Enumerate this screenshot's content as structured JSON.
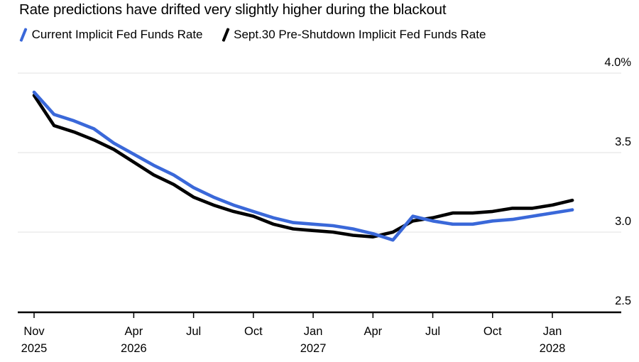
{
  "title": "Rate predictions have drifted very slightly higher during the blackout",
  "legend": {
    "items": [
      {
        "label": "Current Implicit Fed Funds Rate",
        "color": "#3A68D9"
      },
      {
        "label": "Sept.30 Pre-Shutdown Implicit Fed Funds Rate",
        "color": "#000000"
      }
    ]
  },
  "colors": {
    "background": "#ffffff",
    "text": "#000000",
    "gridline": "#e7e7e7",
    "axis": "#000000",
    "accent_blue": "#3A68D9",
    "line_black": "#000000"
  },
  "chart_data": {
    "type": "line",
    "title": "Rate predictions have drifted very slightly higher during the blackout",
    "xlabel": "",
    "ylabel": "",
    "ylim": [
      2.5,
      4.0
    ],
    "grid": "horizontal",
    "legend_position": "top-left",
    "y_ticks": [
      {
        "label": "4.0%",
        "value": 4.0,
        "gridline": true
      },
      {
        "label": "3.5",
        "value": 3.5,
        "gridline": true
      },
      {
        "label": "3.0",
        "value": 3.0,
        "gridline": true
      },
      {
        "label": "2.5",
        "value": 2.5,
        "gridline": false
      }
    ],
    "categories": [
      "Nov 2025",
      "Dec 2025",
      "Jan 2026",
      "Feb 2026",
      "Mar 2026",
      "Apr 2026",
      "May 2026",
      "Jun 2026",
      "Jul 2026",
      "Aug 2026",
      "Sep 2026",
      "Oct 2026",
      "Nov 2026",
      "Dec 2026",
      "Jan 2027",
      "Feb 2027",
      "Mar 2027",
      "Apr 2027",
      "May 2027",
      "Jun 2027",
      "Jul 2027",
      "Aug 2027",
      "Sep 2027",
      "Oct 2027",
      "Nov 2027",
      "Dec 2027",
      "Jan 2028",
      "Feb 2028"
    ],
    "x_ticks": [
      {
        "index": 0,
        "label": "Nov",
        "year": "2025"
      },
      {
        "index": 5,
        "label": "Apr",
        "year": "2026"
      },
      {
        "index": 8,
        "label": "Jul"
      },
      {
        "index": 11,
        "label": "Oct"
      },
      {
        "index": 14,
        "label": "Jan",
        "year": "2027"
      },
      {
        "index": 17,
        "label": "Apr"
      },
      {
        "index": 20,
        "label": "Jul"
      },
      {
        "index": 23,
        "label": "Oct"
      },
      {
        "index": 26,
        "label": "Jan",
        "year": "2028"
      }
    ],
    "series": [
      {
        "name": "Current Implicit Fed Funds Rate",
        "color": "#3A68D9",
        "values": [
          3.88,
          3.74,
          3.7,
          3.65,
          3.56,
          3.49,
          3.42,
          3.36,
          3.28,
          3.22,
          3.17,
          3.13,
          3.09,
          3.06,
          3.05,
          3.04,
          3.02,
          2.99,
          2.95,
          3.1,
          3.07,
          3.05,
          3.05,
          3.07,
          3.08,
          3.1,
          3.12,
          3.14
        ]
      },
      {
        "name": "Sept.30 Pre-Shutdown Implicit Fed Funds Rate",
        "color": "#000000",
        "values": [
          3.86,
          3.67,
          3.63,
          3.58,
          3.52,
          3.44,
          3.36,
          3.3,
          3.22,
          3.17,
          3.13,
          3.1,
          3.05,
          3.02,
          3.01,
          3.0,
          2.98,
          2.97,
          3.0,
          3.07,
          3.09,
          3.12,
          3.12,
          3.13,
          3.15,
          3.15,
          3.17,
          3.2
        ]
      }
    ]
  }
}
